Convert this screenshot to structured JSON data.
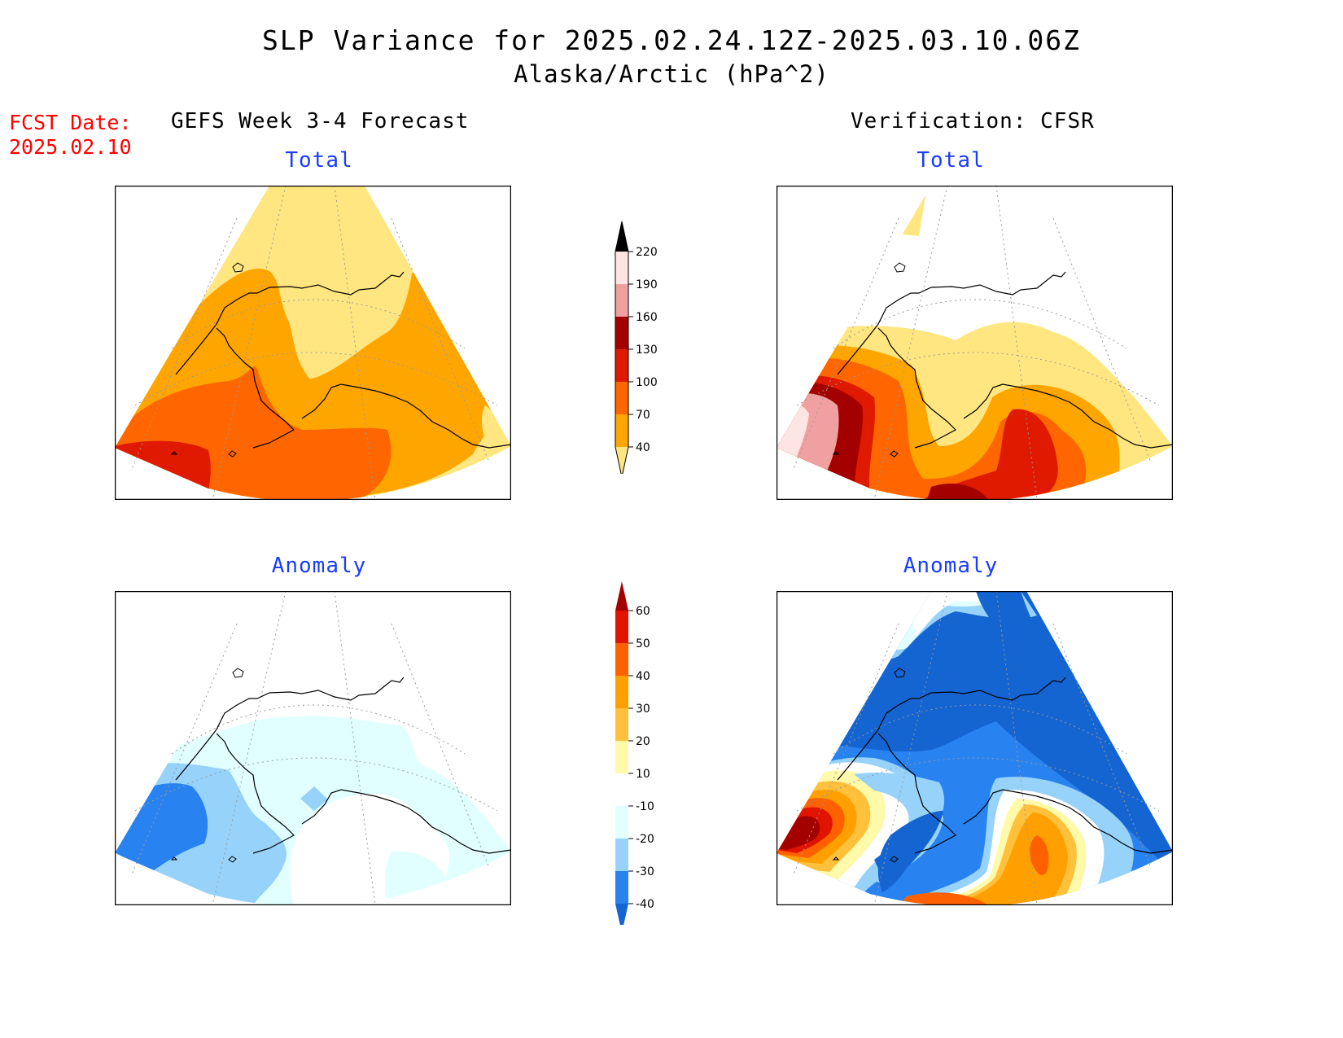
{
  "header": {
    "title": "SLP Variance for 2025.02.24.12Z-2025.03.10.06Z",
    "subtitle": "Alaska/Arctic (hPa^2)",
    "fcst_label": "FCST Date:",
    "fcst_date": "2025.02.10"
  },
  "columns": {
    "left_title": "GEFS Week 3-4 Forecast",
    "right_title": "Verification: CFSR"
  },
  "panels": {
    "top_left": "Total",
    "top_right": "Total",
    "bottom_left": "Anomaly",
    "bottom_right": "Anomaly"
  },
  "colorbars": {
    "total": {
      "levels": [
        "40",
        "70",
        "100",
        "130",
        "160",
        "190",
        "220"
      ],
      "colors": [
        "#ffe680",
        "#ffa500",
        "#ff6600",
        "#e01a00",
        "#a50000",
        "#f0a0a0",
        "#ffe4e4"
      ]
    },
    "anomaly": {
      "levels": [
        "-40",
        "-30",
        "-20",
        "-10",
        "10",
        "20",
        "30",
        "40",
        "50",
        "60"
      ],
      "colors": [
        "#1464d2",
        "#2882f0",
        "#96d2fa",
        "#e1ffff",
        "#ffffff",
        "#fffaaa",
        "#ffc03c",
        "#ffa000",
        "#ff6000",
        "#e11400",
        "#a50000"
      ]
    }
  },
  "colors": {
    "title": "#000000",
    "fcst": "#ff0000",
    "panel_title": "#1a3cff"
  },
  "coastline": "Alaska coastline outline"
}
